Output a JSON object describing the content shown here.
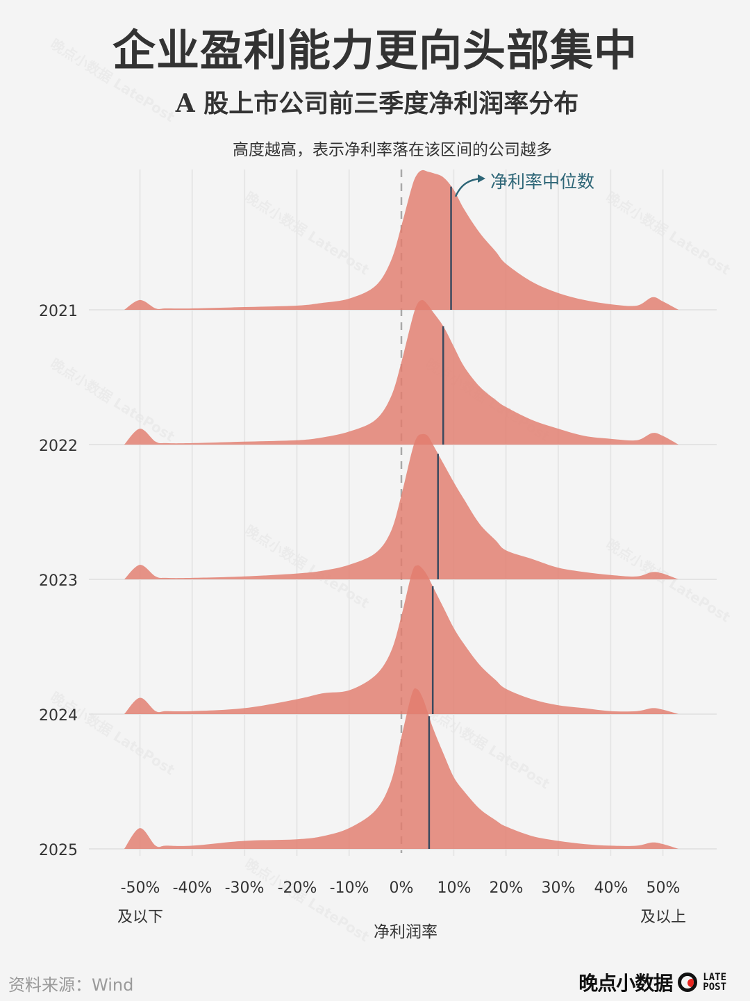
{
  "header": {
    "title": "企业盈利能力更向头部集中",
    "subtitle": "A 股上市公司前三季度净利润率分布",
    "note": "高度越高，表示净利率落在该区间的公司越多"
  },
  "annotation": {
    "median_label": "净利率中位数",
    "color": "#2e6677"
  },
  "axis": {
    "x_ticks": [
      "-50%",
      "-40%",
      "-30%",
      "-20%",
      "-10%",
      "0%",
      "10%",
      "20%",
      "30%",
      "40%",
      "50%"
    ],
    "x_sub_left": "及以下",
    "x_sub_right": "及以上",
    "x_label": "净利润率"
  },
  "years": [
    "2021",
    "2022",
    "2023",
    "2024",
    "2025"
  ],
  "footer": {
    "source": "资料来源：Wind",
    "brand_cn": "晚点小数据",
    "brand_en_line1": "LATE",
    "brand_en_line2": "POST"
  },
  "watermark": "晚点小数据 LatePost",
  "colors": {
    "ridge_fill": "#e27c6e",
    "median_line": "#3b4a5e",
    "zero_line": "#a8a8a8",
    "grid": "#e6e6e6",
    "background": "#f4f4f4"
  },
  "chart_data": {
    "type": "ridgeline",
    "title": "企业盈利能力更向头部集中",
    "subtitle": "A 股上市公司前三季度净利润率分布",
    "xlabel": "净利润率",
    "ylabel": "",
    "xlim": [
      -50,
      50
    ],
    "x_tick_labels": [
      "-50% 及以下",
      "-40%",
      "-30%",
      "-20%",
      "-10%",
      "0%",
      "10%",
      "20%",
      "30%",
      "40%",
      "50% 及以上"
    ],
    "annotations": [
      "高度越高，表示净利率落在该区间的公司越多",
      "净利率中位数"
    ],
    "grid": true,
    "reference_line": {
      "x": 0,
      "style": "dashed"
    },
    "x": [
      -53,
      -50,
      -47,
      -45,
      -40,
      -30,
      -20,
      -15,
      -10,
      -5,
      -2,
      0,
      2,
      3,
      4,
      5,
      6,
      8,
      10,
      12,
      15,
      18,
      20,
      25,
      30,
      35,
      40,
      45,
      48,
      50,
      53
    ],
    "series": [
      {
        "name": "2021",
        "median": 9.5,
        "values": [
          0,
          0.07,
          0.01,
          0.01,
          0.01,
          0.02,
          0.03,
          0.05,
          0.08,
          0.17,
          0.35,
          0.6,
          0.88,
          0.97,
          1.0,
          0.99,
          0.98,
          0.95,
          0.86,
          0.72,
          0.55,
          0.42,
          0.33,
          0.2,
          0.12,
          0.07,
          0.04,
          0.03,
          0.09,
          0.06,
          0
        ]
      },
      {
        "name": "2022",
        "median": 8.0,
        "values": [
          0,
          0.11,
          0.02,
          0.01,
          0.01,
          0.02,
          0.03,
          0.05,
          0.09,
          0.17,
          0.33,
          0.57,
          0.86,
          0.97,
          1.0,
          0.97,
          0.92,
          0.82,
          0.68,
          0.54,
          0.4,
          0.31,
          0.26,
          0.17,
          0.11,
          0.06,
          0.04,
          0.03,
          0.08,
          0.06,
          0
        ]
      },
      {
        "name": "2023",
        "median": 7.0,
        "values": [
          0,
          0.1,
          0.02,
          0.01,
          0.01,
          0.02,
          0.04,
          0.06,
          0.1,
          0.18,
          0.33,
          0.58,
          0.88,
          0.98,
          1.0,
          0.99,
          0.93,
          0.8,
          0.67,
          0.55,
          0.38,
          0.27,
          0.2,
          0.14,
          0.08,
          0.05,
          0.03,
          0.02,
          0.05,
          0.04,
          0
        ]
      },
      {
        "name": "2024",
        "median": 6.0,
        "values": [
          0,
          0.11,
          0.02,
          0.02,
          0.02,
          0.04,
          0.1,
          0.14,
          0.16,
          0.26,
          0.42,
          0.66,
          0.95,
          1.0,
          0.98,
          0.93,
          0.86,
          0.72,
          0.58,
          0.47,
          0.33,
          0.23,
          0.17,
          0.1,
          0.06,
          0.04,
          0.02,
          0.02,
          0.04,
          0.03,
          0
        ]
      },
      {
        "name": "2025",
        "median": 5.3,
        "values": [
          0,
          0.13,
          0.02,
          0.02,
          0.02,
          0.05,
          0.06,
          0.08,
          0.13,
          0.24,
          0.42,
          0.7,
          0.97,
          1.0,
          0.95,
          0.86,
          0.76,
          0.6,
          0.45,
          0.36,
          0.25,
          0.18,
          0.14,
          0.08,
          0.05,
          0.03,
          0.02,
          0.02,
          0.04,
          0.03,
          0
        ]
      }
    ]
  }
}
